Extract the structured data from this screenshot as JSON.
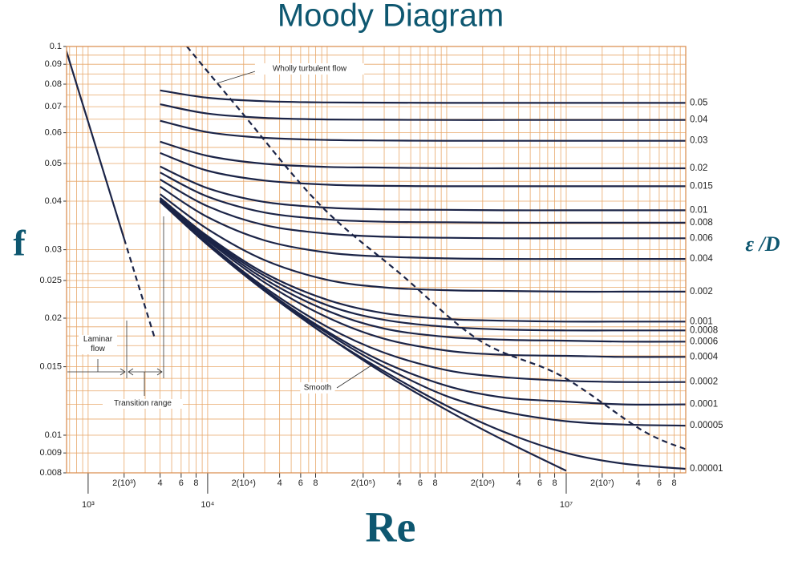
{
  "chart_data": {
    "type": "line",
    "title": "Moody Diagram",
    "x_label": "Re",
    "y_label": "f",
    "y2_label": "ε /D",
    "log_x": true,
    "log_y": true,
    "grid": true,
    "grid_color": "#e8a86a",
    "color": "#1b2447",
    "xlim": [
      660,
      100000000
    ],
    "ylim": [
      0.008,
      0.1
    ],
    "yticks": [
      0.008,
      0.009,
      0.01,
      0.015,
      0.02,
      0.025,
      0.03,
      0.04,
      0.05,
      0.06,
      0.07,
      0.08,
      0.09,
      0.1
    ],
    "xticks": [
      {
        "value": 2000,
        "label": "2(10³)"
      },
      {
        "value": 4000,
        "label": "4"
      },
      {
        "value": 6000,
        "label": "6"
      },
      {
        "value": 8000,
        "label": "8"
      },
      {
        "value": 20000,
        "label": "2(10⁴)"
      },
      {
        "value": 40000,
        "label": "4"
      },
      {
        "value": 60000,
        "label": "6"
      },
      {
        "value": 80000,
        "label": "8"
      },
      {
        "value": 200000,
        "label": "2(10⁵)"
      },
      {
        "value": 400000,
        "label": "4"
      },
      {
        "value": 600000,
        "label": "6"
      },
      {
        "value": 800000,
        "label": "8"
      },
      {
        "value": 2000000,
        "label": "2(10⁶)"
      },
      {
        "value": 4000000,
        "label": "4"
      },
      {
        "value": 6000000,
        "label": "6"
      },
      {
        "value": 8000000,
        "label": "8"
      },
      {
        "value": 20000000,
        "label": "2(10⁷)"
      },
      {
        "value": 40000000,
        "label": "4"
      },
      {
        "value": 60000000,
        "label": "6"
      },
      {
        "value": 80000000,
        "label": "8"
      }
    ],
    "xticks_major": [
      {
        "value": 1000,
        "label": "10³"
      },
      {
        "value": 10000,
        "label": "10⁴"
      },
      {
        "value": 10000000,
        "label": "10⁷"
      }
    ],
    "xgrid": [
      700,
      800,
      900,
      1000,
      2000,
      3000,
      4000,
      5000,
      6000,
      7000,
      8000,
      9000,
      10000,
      20000,
      30000,
      40000,
      50000,
      60000,
      70000,
      80000,
      90000,
      100000,
      200000,
      300000,
      400000,
      500000,
      600000,
      700000,
      800000,
      900000,
      1000000,
      2000000,
      3000000,
      4000000,
      5000000,
      6000000,
      7000000,
      8000000,
      9000000,
      10000000,
      20000000,
      30000000,
      40000000,
      50000000,
      60000000,
      70000000,
      80000000,
      90000000,
      100000000
    ],
    "ygrid": [
      0.008,
      0.009,
      0.01,
      0.011,
      0.012,
      0.013,
      0.014,
      0.015,
      0.016,
      0.017,
      0.018,
      0.019,
      0.02,
      0.022,
      0.024,
      0.025,
      0.026,
      0.028,
      0.03,
      0.035,
      0.04,
      0.045,
      0.05,
      0.055,
      0.06,
      0.065,
      0.07,
      0.075,
      0.08,
      0.085,
      0.09,
      0.095,
      0.1
    ],
    "x": [
      4000,
      10000,
      30000,
      100000,
      300000,
      1000000,
      3000000,
      10000000,
      30000000,
      100000000
    ],
    "series": [
      {
        "name": "0.05",
        "values": [
          0.0771,
          0.0738,
          0.0723,
          0.0718,
          0.0717,
          0.0716,
          0.0716,
          0.0716,
          0.0716,
          0.0716
        ]
      },
      {
        "name": "0.04",
        "values": [
          0.071,
          0.0672,
          0.0655,
          0.0649,
          0.0648,
          0.0647,
          0.0647,
          0.0647,
          0.0647,
          0.0647
        ]
      },
      {
        "name": "0.03",
        "values": [
          0.0644,
          0.0602,
          0.0582,
          0.0575,
          0.0573,
          0.0572,
          0.0572,
          0.0572,
          0.0572,
          0.0572
        ]
      },
      {
        "name": "0.02",
        "values": [
          0.0569,
          0.0523,
          0.0499,
          0.049,
          0.0488,
          0.0486,
          0.0486,
          0.0486,
          0.0486,
          0.0486
        ]
      },
      {
        "name": "0.015",
        "values": [
          0.0532,
          0.0479,
          0.0452,
          0.0441,
          0.0438,
          0.0437,
          0.0437,
          0.0437,
          0.0437,
          0.0437
        ]
      },
      {
        "name": "0.01",
        "values": [
          0.0491,
          0.0432,
          0.0398,
          0.0385,
          0.0381,
          0.038,
          0.0379,
          0.0379,
          0.0379,
          0.0379
        ]
      },
      {
        "name": "0.008",
        "values": [
          0.0474,
          0.0411,
          0.0374,
          0.0359,
          0.0354,
          0.0353,
          0.0352,
          0.0352,
          0.0352,
          0.0352
        ]
      },
      {
        "name": "0.006",
        "values": [
          0.0455,
          0.0388,
          0.0347,
          0.033,
          0.0324,
          0.0322,
          0.0321,
          0.0321,
          0.0321,
          0.0321
        ]
      },
      {
        "name": "0.004",
        "values": [
          0.0436,
          0.0364,
          0.0317,
          0.0295,
          0.0288,
          0.0285,
          0.0284,
          0.0284,
          0.0284,
          0.0284
        ]
      },
      {
        "name": "0.002",
        "values": [
          0.0417,
          0.0339,
          0.0282,
          0.0251,
          0.024,
          0.0236,
          0.0235,
          0.0234,
          0.0234,
          0.0234
        ]
      },
      {
        "name": "0.001",
        "values": [
          0.0408,
          0.0325,
          0.0261,
          0.0223,
          0.0206,
          0.0199,
          0.0197,
          0.0196,
          0.0196,
          0.0196
        ]
      },
      {
        "name": "0.0008",
        "values": [
          0.0406,
          0.0322,
          0.0257,
          0.0216,
          0.0198,
          0.019,
          0.0187,
          0.0186,
          0.0186,
          0.0186
        ]
      },
      {
        "name": "0.0006",
        "values": [
          0.0404,
          0.032,
          0.0252,
          0.0209,
          0.0188,
          0.0179,
          0.0176,
          0.0175,
          0.0174,
          0.0174
        ]
      },
      {
        "name": "0.0004",
        "values": [
          0.0402,
          0.0317,
          0.0247,
          0.0201,
          0.0177,
          0.0165,
          0.0161,
          0.016,
          0.0159,
          0.0159
        ]
      },
      {
        "name": "0.0002",
        "values": [
          0.0401,
          0.0313,
          0.024,
          0.019,
          0.0163,
          0.0147,
          0.0141,
          0.0138,
          0.0137,
          0.0137
        ]
      },
      {
        "name": "0.0001",
        "values": [
          0.04,
          0.031,
          0.0237,
          0.0185,
          0.0154,
          0.0134,
          0.0125,
          0.0122,
          0.012,
          0.012
        ]
      },
      {
        "name": "0.00005",
        "values": [
          0.04,
          0.0309,
          0.0236,
          0.0183,
          0.015,
          0.0126,
          0.0115,
          0.01086,
          0.01065,
          0.01058
        ]
      },
      {
        "name": "0.00001",
        "values": [
          0.0399,
          0.0309,
          0.0235,
          0.018,
          0.0146,
          0.0119,
          0.0102,
          0.009,
          0.00845,
          0.00819
        ]
      },
      {
        "name": "Smooth",
        "callout": true,
        "values": [
          0.0399,
          0.0309,
          0.0235,
          0.018,
          0.0144,
          0.0116,
          0.0097,
          0.0081,
          null,
          null
        ]
      },
      {
        "x": [
          640,
          2000
        ],
        "values": [
          0.1,
          0.032
        ]
      },
      {
        "x": [
          2000,
          3600
        ],
        "values": [
          0.032,
          0.0178
        ],
        "dash": true
      },
      {
        "name": "Wholly turbulent flow",
        "callout": true,
        "dash": true,
        "x": [
          6700,
          19000,
          88000,
          410000,
          1900000,
          9100000,
          43000000,
          100000000
        ],
        "values": [
          0.1,
          0.068,
          0.039,
          0.026,
          0.0175,
          0.0142,
          0.0103,
          0.0092
        ]
      }
    ],
    "annotations": [
      "Laminar flow",
      "Transition range"
    ]
  }
}
